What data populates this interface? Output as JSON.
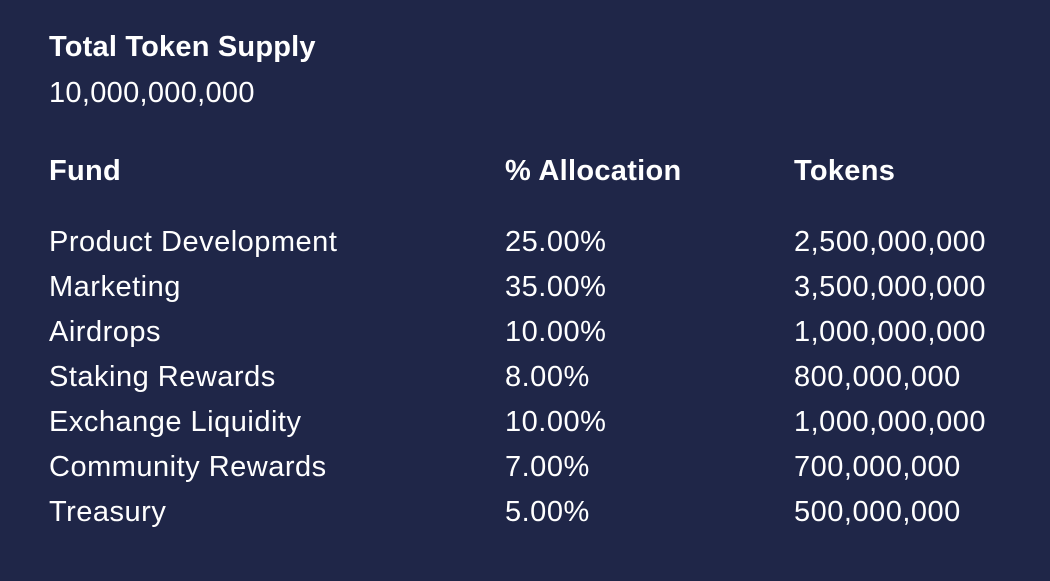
{
  "supply": {
    "title": "Total Token Supply",
    "value": "10,000,000,000"
  },
  "table": {
    "headers": {
      "fund": "Fund",
      "allocation": "% Allocation",
      "tokens": "Tokens"
    },
    "rows": [
      {
        "fund": "Product Development",
        "allocation": "25.00%",
        "tokens": "2,500,000,000"
      },
      {
        "fund": "Marketing",
        "allocation": "35.00%",
        "tokens": "3,500,000,000"
      },
      {
        "fund": "Airdrops",
        "allocation": "10.00%",
        "tokens": "1,000,000,000"
      },
      {
        "fund": "Staking Rewards",
        "allocation": "8.00%",
        "tokens": "800,000,000"
      },
      {
        "fund": "Exchange Liquidity",
        "allocation": "10.00%",
        "tokens": "1,000,000,000"
      },
      {
        "fund": "Community Rewards",
        "allocation": "7.00%",
        "tokens": "700,000,000"
      },
      {
        "fund": "Treasury",
        "allocation": "5.00%",
        "tokens": "500,000,000"
      }
    ]
  },
  "colors": {
    "background": "#1f2648",
    "text": "#ffffff"
  }
}
